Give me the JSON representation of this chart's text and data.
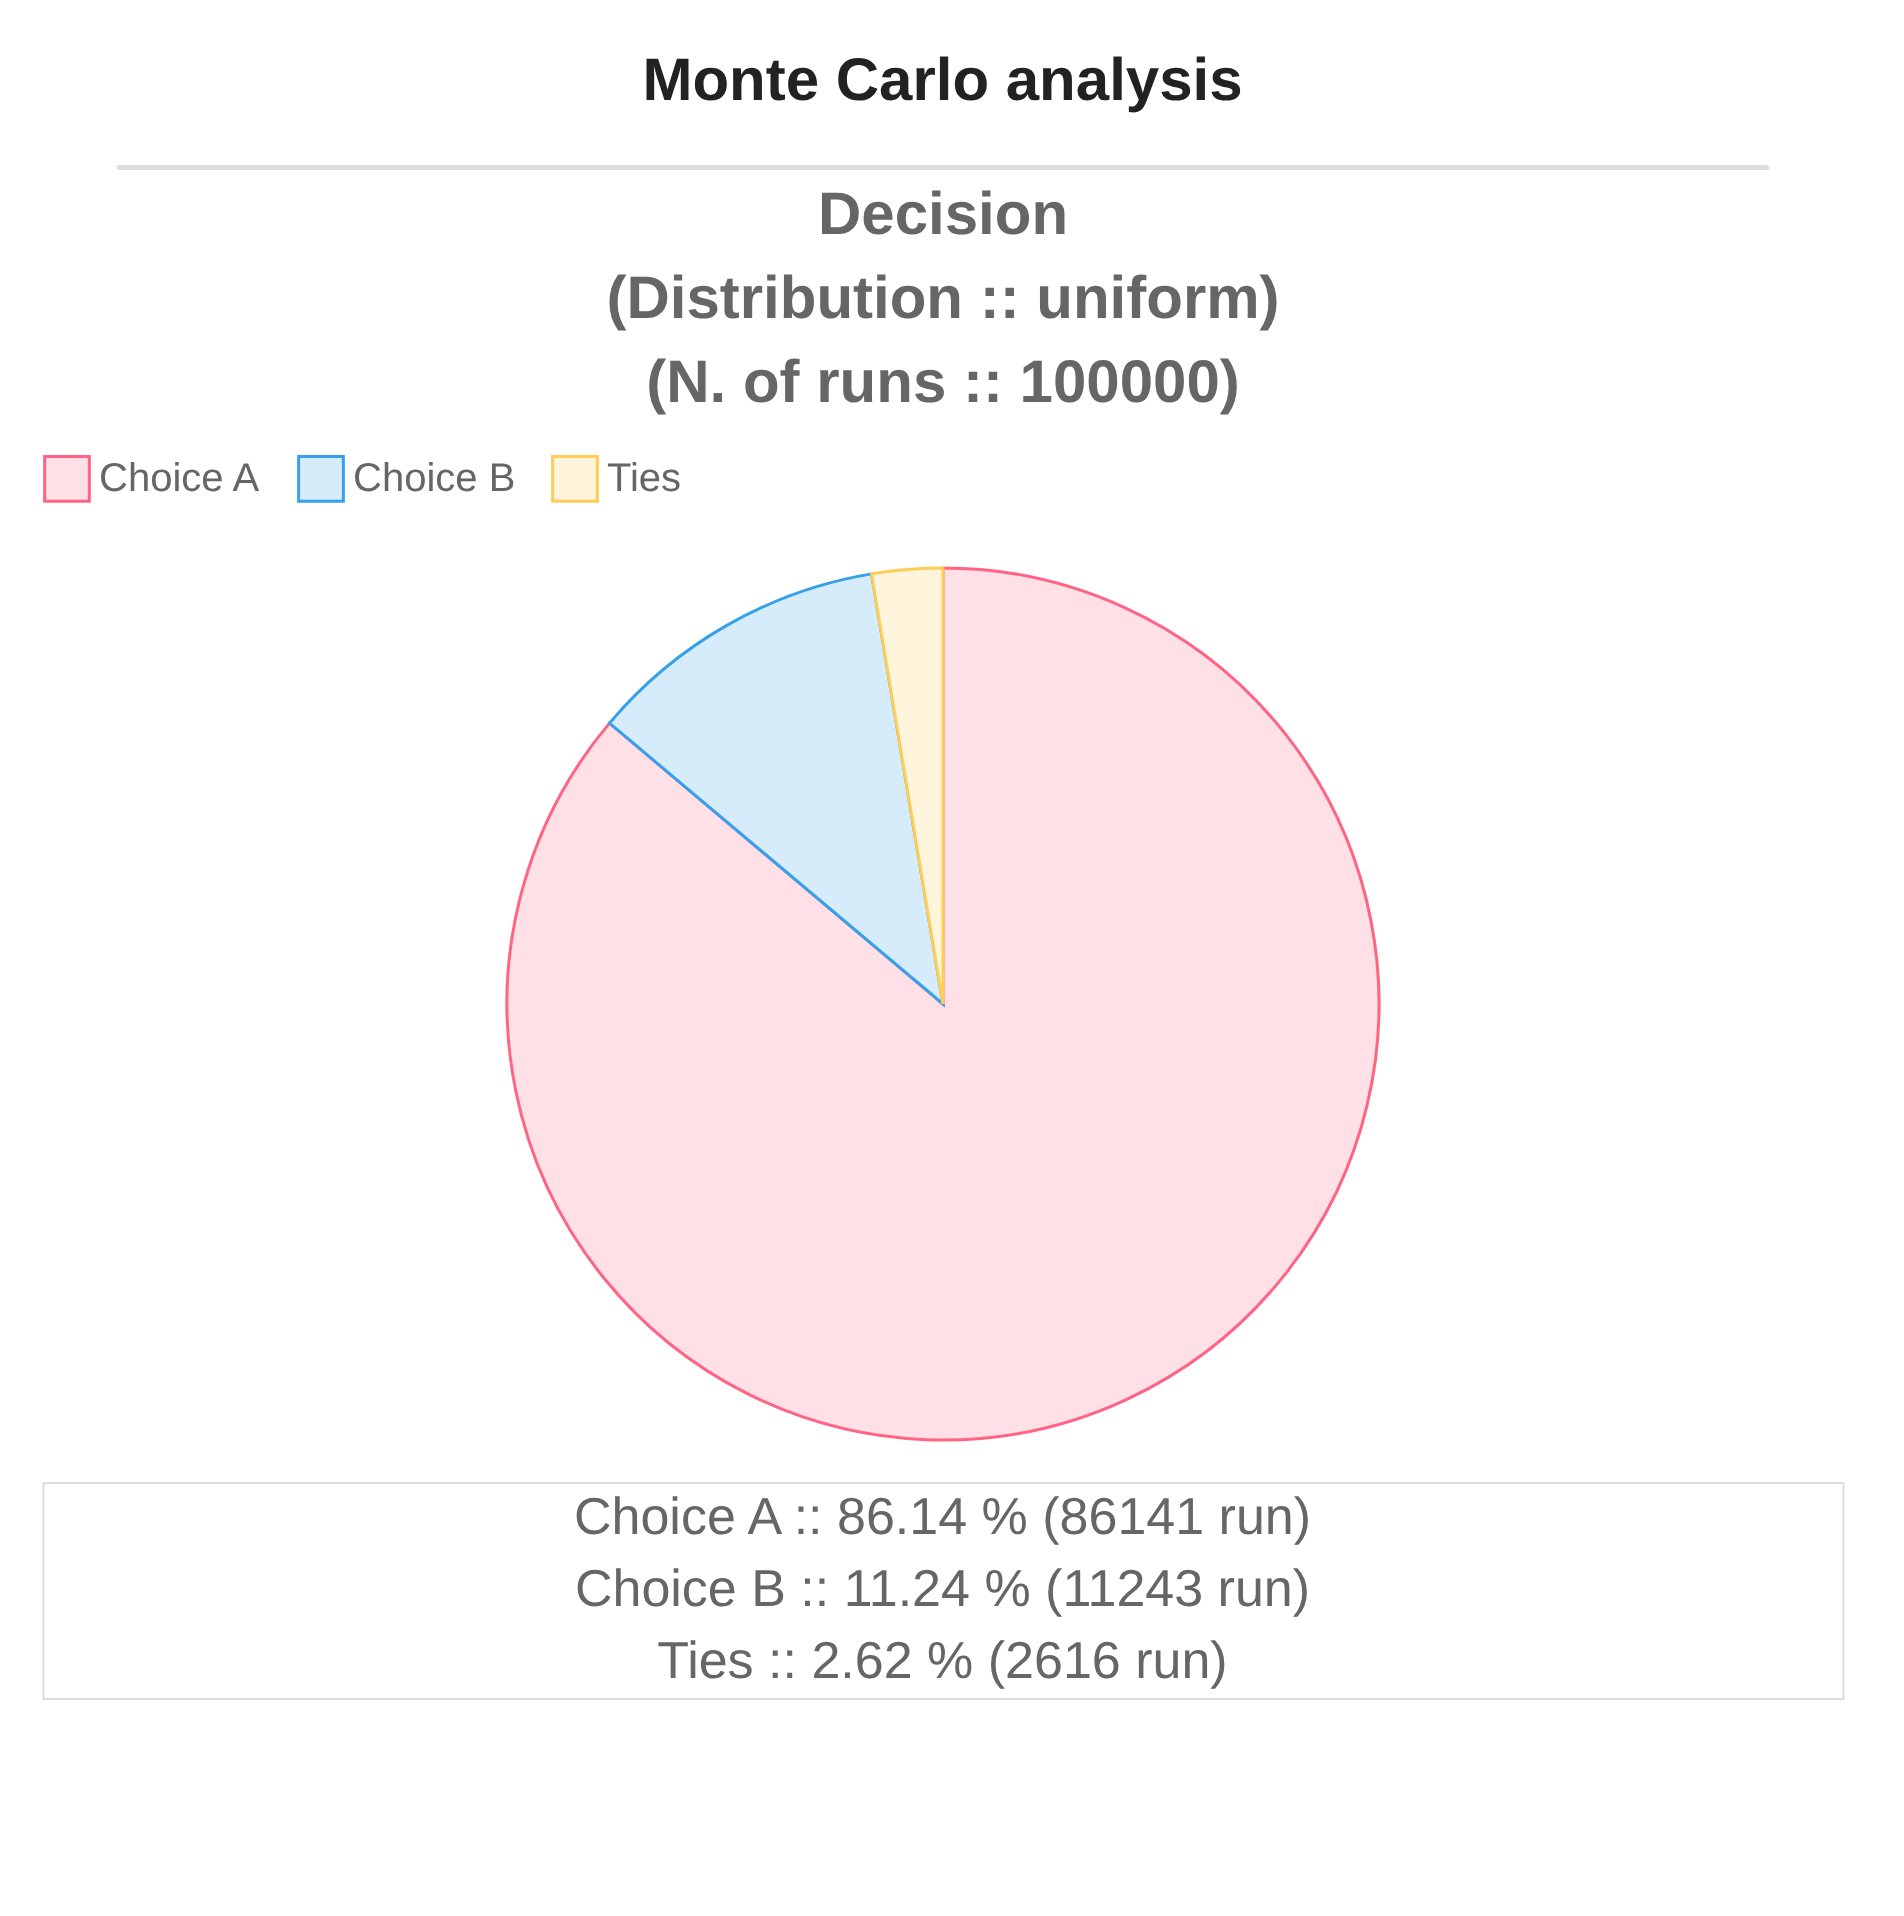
{
  "chart_data": {
    "type": "pie",
    "title": "Monte Carlo analysis",
    "subtitle": "Decision\n(Distribution :: uniform)\n(N. of runs :: 100000)",
    "categories": [
      "Choice A",
      "Choice B",
      "Ties"
    ],
    "values": [
      86.14,
      11.24,
      2.62
    ],
    "colors": [
      "#ffe0e6",
      "#d7ecfb",
      "#fff5dd"
    ],
    "legend": "top",
    "annotations": [
      "Choice A :: 86.14 % (86141 run)",
      "Choice B :: 11.24 % (11243 run)",
      "Ties :: 2.62 % (2616 run)"
    ]
  }
}
